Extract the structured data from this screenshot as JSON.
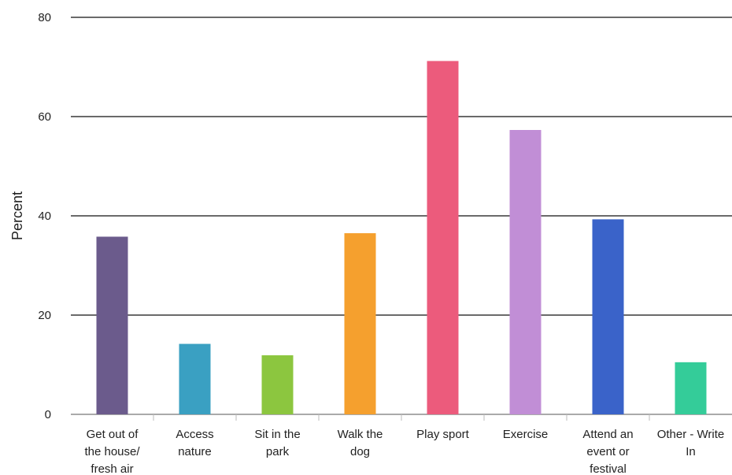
{
  "chart_data": {
    "type": "bar",
    "ylabel": "Percent",
    "ylim": [
      0,
      80
    ],
    "yticks": [
      0,
      20,
      40,
      60,
      80
    ],
    "grid": true,
    "categories": [
      [
        "Get out of",
        "the house/",
        "fresh air"
      ],
      [
        "Access",
        "nature"
      ],
      [
        "Sit in the",
        "park"
      ],
      [
        "Walk the",
        "dog"
      ],
      [
        "Play sport"
      ],
      [
        "Exercise"
      ],
      [
        "Attend an",
        "event or",
        "festival"
      ],
      [
        "Other - Write",
        "In"
      ]
    ],
    "values": [
      35.8,
      14.2,
      11.9,
      36.5,
      71.2,
      57.3,
      39.3,
      10.5
    ],
    "colors": [
      "#6b5b8c",
      "#3aa0c2",
      "#8cc63f",
      "#f5a02e",
      "#ec5b7c",
      "#c18ed6",
      "#3a63c9",
      "#34cc99"
    ]
  }
}
